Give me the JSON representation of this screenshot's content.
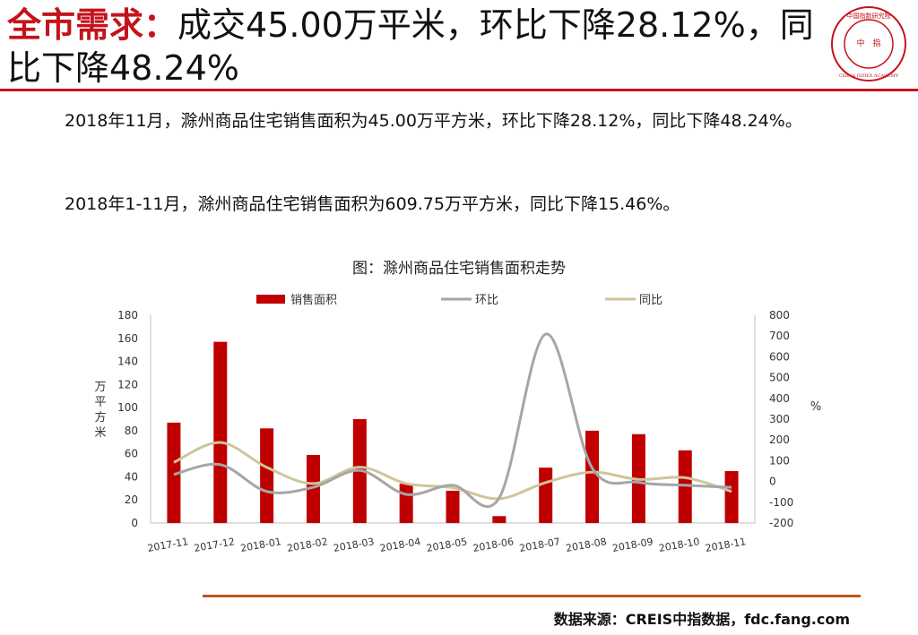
{
  "header": {
    "title_highlight": "全市需求：",
    "title_rest": "成交45.00万平米，环比下降28.12%，同比下降48.24%"
  },
  "logo": {
    "top_text": "中国指数研究院",
    "center_text_1": "中",
    "center_text_2": "指",
    "ring_text": "CHINA INDEX ACADEMY"
  },
  "paragraphs": [
    "2018年11月，滁州商品住宅销售面积为45.00万平方米，环比下降28.12%，同比下降48.24%。",
    "2018年1-11月，滁州商品住宅销售面积为609.75万平方米，同比下降15.46%。"
  ],
  "chart_title": "图：滁州商品住宅销售面积走势",
  "source": "数据来源：CREIS中指数据，fdc.fang.com",
  "colors": {
    "bar": "#c00000",
    "mom": "#a6a6a6",
    "yoy": "#cfc59a",
    "accent": "#c4141b"
  },
  "chart_data": {
    "type": "bar",
    "categories": [
      "2017-11",
      "2017-12",
      "2018-01",
      "2018-02",
      "2018-03",
      "2018-04",
      "2018-05",
      "2018-06",
      "2018-07",
      "2018-08",
      "2018-09",
      "2018-10",
      "2018-11"
    ],
    "series": [
      {
        "name": "销售面积",
        "type": "bar",
        "axis": "left",
        "values": [
          87,
          157,
          82,
          59,
          90,
          34,
          28,
          6,
          48,
          80,
          77,
          63,
          45
        ]
      },
      {
        "name": "环比",
        "type": "line",
        "axis": "right",
        "values": [
          34,
          81,
          -48,
          -28,
          53,
          -62,
          -18,
          -79,
          709,
          65,
          -4,
          -18,
          -28
        ]
      },
      {
        "name": "同比",
        "type": "line",
        "axis": "right",
        "values": [
          92,
          188,
          68,
          -10,
          69,
          -10,
          -30,
          -83,
          -5,
          45,
          10,
          18,
          -48
        ]
      }
    ],
    "y_left": {
      "label": "万平方米",
      "min": 0,
      "max": 180,
      "ticks": [
        0,
        20,
        40,
        60,
        80,
        100,
        120,
        140,
        160,
        180
      ]
    },
    "y_right": {
      "label": "%",
      "min": -200,
      "max": 800,
      "ticks": [
        -200,
        -100,
        0,
        100,
        200,
        300,
        400,
        500,
        600,
        700,
        800
      ]
    },
    "legend": "top",
    "grid": false
  }
}
